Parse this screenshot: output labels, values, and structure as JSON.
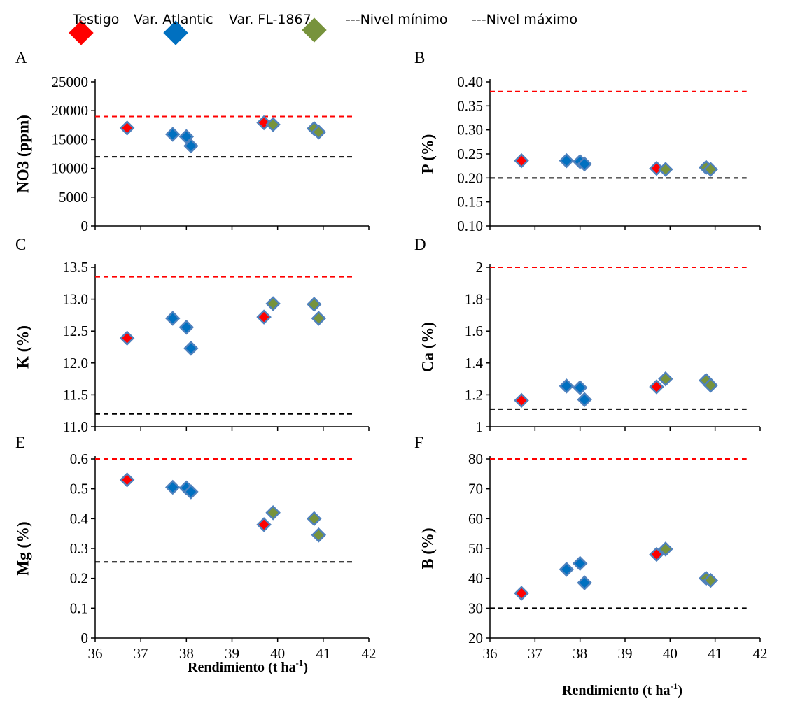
{
  "legend": {
    "items": [
      {
        "label": "Testigo",
        "marker": "diamond",
        "color": "#ff0000"
      },
      {
        "label": "Var. Atlantic",
        "marker": "diamond",
        "color": "#0070c0"
      },
      {
        "label": "Var. FL-1867",
        "marker": "diamond",
        "color": "#77933c"
      },
      {
        "label": "---Nivel mínimo",
        "marker": "none",
        "color": "#000000"
      },
      {
        "label": "---Nivel máximo",
        "marker": "none",
        "color": "#ff0000"
      }
    ]
  },
  "x_axis_label": {
    "main": "Rendimiento (t ha",
    "sup": "-1",
    "close": ")"
  },
  "colors": {
    "testigo": "#ff0000",
    "atlantic": "#0070c0",
    "fl1867": "#77933c",
    "edge": "#4f81bd",
    "min_line": "#000000",
    "max_line": "#ff0000"
  },
  "chart_data": [
    {
      "type": "scatter",
      "panel": "A",
      "ylabel": "NO3 (ppm)",
      "xlim": [
        36,
        42
      ],
      "ylim": [
        0,
        25000
      ],
      "yticks": [
        "0",
        "5000",
        "10000",
        "15000",
        "20000",
        "25000"
      ],
      "xticks": [],
      "min_level": 12000,
      "max_level": 19000,
      "series": [
        {
          "name": "Testigo",
          "points": [
            [
              36.7,
              17000
            ],
            [
              39.7,
              17900
            ]
          ]
        },
        {
          "name": "Var. Atlantic",
          "points": [
            [
              37.7,
              15900
            ],
            [
              38.0,
              15500
            ],
            [
              38.1,
              13900
            ]
          ]
        },
        {
          "name": "Var. FL-1867",
          "points": [
            [
              39.9,
              17600
            ],
            [
              40.8,
              16900
            ],
            [
              40.9,
              16300
            ]
          ]
        }
      ]
    },
    {
      "type": "scatter",
      "panel": "B",
      "ylabel": "P (%)",
      "xlim": [
        36,
        42
      ],
      "ylim": [
        0.1,
        0.4
      ],
      "yticks": [
        "0.10",
        "0.15",
        "0.20",
        "0.25",
        "0.30",
        "0.35",
        "0.40"
      ],
      "xticks": [],
      "min_level": 0.2,
      "max_level": 0.38,
      "series": [
        {
          "name": "Testigo",
          "points": [
            [
              36.7,
              0.236
            ],
            [
              39.7,
              0.22
            ]
          ]
        },
        {
          "name": "Var. Atlantic",
          "points": [
            [
              37.7,
              0.236
            ],
            [
              38.0,
              0.234
            ],
            [
              38.1,
              0.229
            ]
          ]
        },
        {
          "name": "Var. FL-1867",
          "points": [
            [
              39.9,
              0.218
            ],
            [
              40.8,
              0.222
            ],
            [
              40.9,
              0.218
            ]
          ]
        }
      ]
    },
    {
      "type": "scatter",
      "panel": "C",
      "ylabel": "K (%)",
      "xlim": [
        36,
        42
      ],
      "ylim": [
        11.0,
        13.5
      ],
      "yticks": [
        "11.0",
        "11.5",
        "12.0",
        "12.5",
        "13.0",
        "13.5"
      ],
      "xticks": [],
      "min_level": 11.2,
      "max_level": 13.35,
      "series": [
        {
          "name": "Testigo",
          "points": [
            [
              36.7,
              12.39
            ],
            [
              39.7,
              12.72
            ]
          ]
        },
        {
          "name": "Var. Atlantic",
          "points": [
            [
              37.7,
              12.7
            ],
            [
              38.0,
              12.56
            ],
            [
              38.1,
              12.23
            ]
          ]
        },
        {
          "name": "Var. FL-1867",
          "points": [
            [
              39.9,
              12.93
            ],
            [
              40.8,
              12.92
            ],
            [
              40.9,
              12.7
            ]
          ]
        }
      ]
    },
    {
      "type": "scatter",
      "panel": "D",
      "ylabel": "Ca (%)",
      "xlim": [
        36,
        42
      ],
      "ylim": [
        1,
        2
      ],
      "yticks": [
        "1",
        "1.2",
        "1.4",
        "1.6",
        "1.8",
        "2"
      ],
      "xticks": [],
      "min_level": 1.11,
      "max_level": 2.0,
      "series": [
        {
          "name": "Testigo",
          "points": [
            [
              36.7,
              1.165
            ],
            [
              39.7,
              1.25
            ]
          ]
        },
        {
          "name": "Var. Atlantic",
          "points": [
            [
              37.7,
              1.255
            ],
            [
              38.0,
              1.245
            ],
            [
              38.1,
              1.17
            ]
          ]
        },
        {
          "name": "Var. FL-1867",
          "points": [
            [
              39.9,
              1.3
            ],
            [
              40.8,
              1.29
            ],
            [
              40.9,
              1.26
            ]
          ]
        }
      ]
    },
    {
      "type": "scatter",
      "panel": "E",
      "ylabel": "Mg (%)",
      "xlim": [
        36,
        42
      ],
      "ylim": [
        0,
        0.6
      ],
      "yticks": [
        "0",
        "0.1",
        "0.2",
        "0.3",
        "0.4",
        "0.5",
        "0.6"
      ],
      "xticks": [
        "36",
        "37",
        "38",
        "39",
        "40",
        "41",
        "42"
      ],
      "min_level": 0.255,
      "max_level": 0.6,
      "series": [
        {
          "name": "Testigo",
          "points": [
            [
              36.7,
              0.53
            ],
            [
              39.7,
              0.38
            ]
          ]
        },
        {
          "name": "Var. Atlantic",
          "points": [
            [
              37.7,
              0.505
            ],
            [
              38.0,
              0.503
            ],
            [
              38.1,
              0.49
            ]
          ]
        },
        {
          "name": "Var. FL-1867",
          "points": [
            [
              39.9,
              0.42
            ],
            [
              40.8,
              0.4
            ],
            [
              40.9,
              0.345
            ]
          ]
        }
      ]
    },
    {
      "type": "scatter",
      "panel": "F",
      "ylabel": "B (%)",
      "xlim": [
        36,
        42
      ],
      "ylim": [
        20,
        80
      ],
      "yticks": [
        "20",
        "30",
        "40",
        "50",
        "60",
        "70",
        "80"
      ],
      "xticks": [
        "36",
        "37",
        "38",
        "39",
        "40",
        "41",
        "42"
      ],
      "min_level": 30,
      "max_level": 80,
      "series": [
        {
          "name": "Testigo",
          "points": [
            [
              36.7,
              35
            ],
            [
              39.7,
              48
            ]
          ]
        },
        {
          "name": "Var. Atlantic",
          "points": [
            [
              37.7,
              43
            ],
            [
              38.0,
              45
            ],
            [
              38.1,
              38.5
            ]
          ]
        },
        {
          "name": "Var. FL-1867",
          "points": [
            [
              39.9,
              49.8
            ],
            [
              40.8,
              40
            ],
            [
              40.9,
              39.3
            ]
          ]
        }
      ]
    }
  ]
}
